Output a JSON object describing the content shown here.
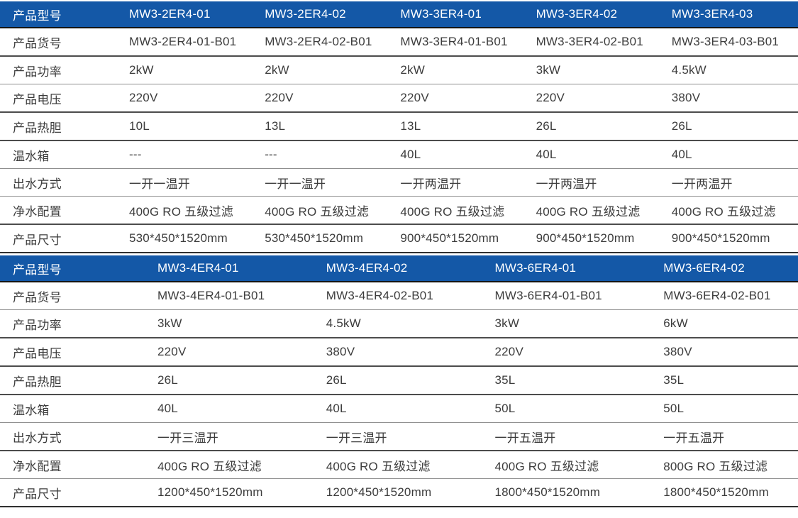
{
  "colors": {
    "page-bg": "#ffffff",
    "header-bg": "#1458a7",
    "header-text": "#ffffff",
    "body-text": "#3c3c3c",
    "rule-dark": "#4c4c4c",
    "rule-light": "#8f8f8f",
    "rule-header": "#141414"
  },
  "tables": [
    {
      "header": [
        "产品型号",
        "MW3-2ER4-01",
        "MW3-2ER4-02",
        "MW3-3ER4-01",
        "MW3-3ER4-02",
        "MW3-3ER4-03"
      ],
      "rows": [
        [
          "产品货号",
          "MW3-2ER4-01-B01",
          "MW3-2ER4-02-B01",
          "MW3-3ER4-01-B01",
          "MW3-3ER4-02-B01",
          "MW3-3ER4-03-B01"
        ],
        [
          "产品功率",
          "2kW",
          "2kW",
          "2kW",
          "3kW",
          "4.5kW"
        ],
        [
          "产品电压",
          "220V",
          "220V",
          "220V",
          "220V",
          "380V"
        ],
        [
          "产品热胆",
          "10L",
          "13L",
          "13L",
          "26L",
          "26L"
        ],
        [
          "温水箱",
          "---",
          "---",
          "40L",
          "40L",
          "40L"
        ],
        [
          "出水方式",
          "一开一温开",
          "一开一温开",
          "一开两温开",
          "一开两温开",
          "一开两温开"
        ],
        [
          "净水配置",
          "400G RO 五级过滤",
          "400G RO 五级过滤",
          "400G RO 五级过滤",
          "400G RO 五级过滤",
          "400G RO 五级过滤"
        ],
        [
          "产品尺寸",
          "530*450*1520mm",
          "530*450*1520mm",
          "900*450*1520mm",
          "900*450*1520mm",
          "900*450*1520mm"
        ]
      ]
    },
    {
      "header": [
        "产品型号",
        "MW3-4ER4-01",
        "MW3-4ER4-02",
        "MW3-6ER4-01",
        "MW3-6ER4-02"
      ],
      "rows": [
        [
          "产品货号",
          "MW3-4ER4-01-B01",
          "MW3-4ER4-02-B01",
          "MW3-6ER4-01-B01",
          "MW3-6ER4-02-B01"
        ],
        [
          "产品功率",
          "3kW",
          "4.5kW",
          "3kW",
          "6kW"
        ],
        [
          "产品电压",
          "220V",
          "380V",
          "220V",
          "380V"
        ],
        [
          "产品热胆",
          "26L",
          "26L",
          "35L",
          "35L"
        ],
        [
          "温水箱",
          "40L",
          "40L",
          "50L",
          "50L"
        ],
        [
          "出水方式",
          "一开三温开",
          "一开三温开",
          "一开五温开",
          "一开五温开"
        ],
        [
          "净水配置",
          "400G RO 五级过滤",
          "400G RO 五级过滤",
          "400G RO 五级过滤",
          "800G RO 五级过滤"
        ],
        [
          "产品尺寸",
          "1200*450*1520mm",
          "1200*450*1520mm",
          "1800*450*1520mm",
          "1800*450*1520mm"
        ]
      ]
    }
  ]
}
